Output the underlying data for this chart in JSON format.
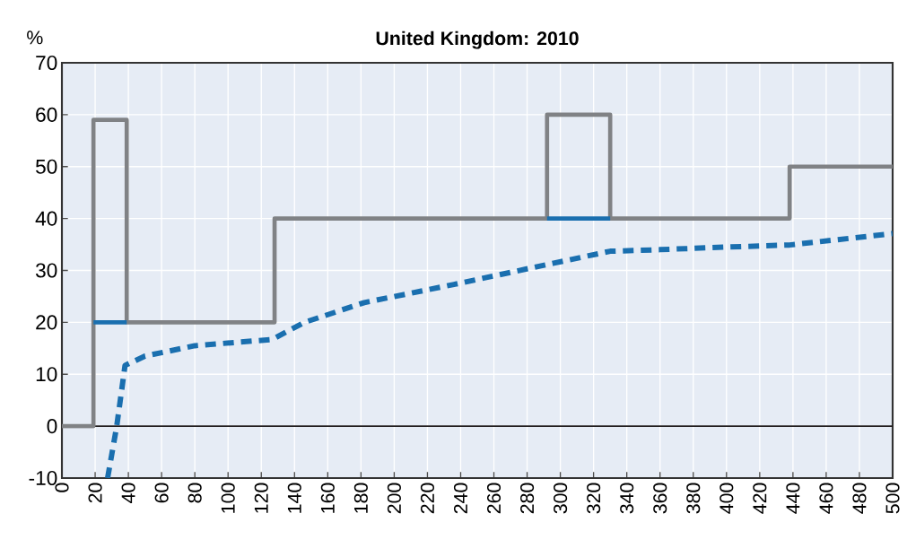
{
  "chart_data": {
    "type": "step",
    "title": "United Kingdom: 2010",
    "ylabel": "%",
    "xlim": [
      0,
      500
    ],
    "ylim": [
      -10,
      70
    ],
    "xticks": [
      0,
      20,
      40,
      60,
      80,
      100,
      120,
      140,
      160,
      180,
      200,
      220,
      240,
      260,
      280,
      300,
      320,
      340,
      360,
      380,
      400,
      420,
      440,
      460,
      480,
      500
    ],
    "yticks": [
      -10,
      0,
      10,
      20,
      30,
      40,
      50,
      60,
      70
    ],
    "grid": true,
    "ref_lines": [
      {
        "axis": "y",
        "value": 0,
        "color": "#231f20"
      }
    ],
    "series": [
      {
        "color": "#808285",
        "x": [
          0,
          19,
          39,
          128,
          292,
          330,
          438,
          500
        ],
        "values": [
          0,
          59,
          20,
          40,
          60,
          40,
          50,
          50
        ]
      },
      {
        "type": "step",
        "color": "#1a6faf",
        "x": [
          19,
          39
        ],
        "values": [
          20,
          20
        ]
      },
      {
        "type": "step",
        "color": "#1a6faf",
        "x": [
          292,
          330
        ],
        "values": [
          40,
          40
        ]
      },
      {
        "type": "line",
        "line_style": "dashed",
        "color": "#1a6faf",
        "x": [
          27.5,
          33,
          38,
          50,
          80,
          126.5,
          146,
          182,
          236,
          296,
          330,
          360,
          400,
          438,
          500
        ],
        "values": [
          -10,
          0,
          11.7,
          13.5,
          15.5,
          16.7,
          20,
          23.8,
          27.3,
          31.4,
          33.7,
          34,
          34.5,
          34.9,
          37.1
        ]
      }
    ]
  }
}
